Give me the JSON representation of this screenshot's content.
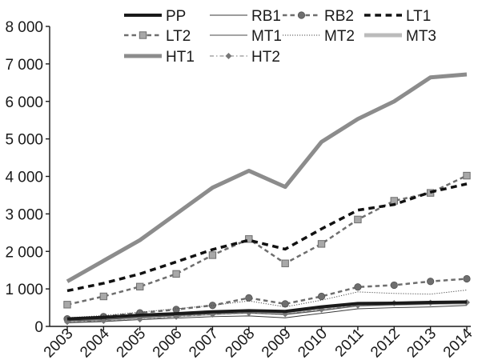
{
  "chart_data": {
    "type": "line",
    "title": "",
    "xlabel": "",
    "ylabel": "",
    "x": [
      2003,
      2004,
      2005,
      2006,
      2007,
      2008,
      2009,
      2010,
      2011,
      2012,
      2013,
      2014
    ],
    "ylim": [
      0,
      8000
    ],
    "yticks": [
      0,
      1000,
      2000,
      3000,
      4000,
      5000,
      6000,
      7000,
      8000
    ],
    "ytick_labels": [
      "0",
      "1 000",
      "2 000",
      "3 000",
      "4 000",
      "5 000",
      "6 000",
      "7 000",
      "8 000"
    ],
    "xtick_labels": [
      "2003",
      "2004",
      "2005",
      "2006",
      "2007",
      "2008",
      "2009",
      "2010",
      "2011",
      "2012",
      "2013",
      "2014"
    ],
    "grid": false,
    "legend_position": "top",
    "series": [
      {
        "name": "PP",
        "color": "#1a1a1a",
        "style": "solid",
        "width": 4,
        "marker": "none",
        "values": [
          200,
          240,
          300,
          340,
          390,
          420,
          400,
          520,
          610,
          620,
          640,
          650
        ]
      },
      {
        "name": "RB1",
        "color": "#3a3a3a",
        "style": "solid",
        "width": 1,
        "marker": "none",
        "values": [
          100,
          130,
          180,
          220,
          260,
          280,
          230,
          350,
          470,
          500,
          520,
          560
        ]
      },
      {
        "name": "RB2",
        "color": "#6e6e6e",
        "style": "dashed",
        "width": 2.5,
        "marker": "circle",
        "values": [
          200,
          260,
          360,
          450,
          560,
          760,
          600,
          800,
          1050,
          1100,
          1200,
          1270
        ]
      },
      {
        "name": "LT1",
        "color": "#111111",
        "style": "dashed",
        "width": 3.5,
        "marker": "none",
        "values": [
          950,
          1150,
          1400,
          1720,
          2050,
          2300,
          2060,
          2600,
          3100,
          3250,
          3580,
          3800
        ]
      },
      {
        "name": "LT2",
        "color": "#6e6e6e",
        "style": "dashed",
        "width": 2.5,
        "marker": "square",
        "values": [
          580,
          800,
          1060,
          1400,
          1900,
          2330,
          1680,
          2200,
          2850,
          3350,
          3560,
          4020
        ]
      },
      {
        "name": "MT1",
        "color": "#4a4a4a",
        "style": "solid",
        "width": 1,
        "marker": "none",
        "values": [
          150,
          180,
          240,
          290,
          340,
          360,
          320,
          420,
          550,
          580,
          600,
          630
        ]
      },
      {
        "name": "MT2",
        "color": "#4a4a4a",
        "style": "dotted",
        "width": 1,
        "marker": "none",
        "values": [
          230,
          290,
          380,
          470,
          560,
          680,
          520,
          700,
          920,
          880,
          860,
          970
        ]
      },
      {
        "name": "MT3",
        "color": "#bbbbbb",
        "style": "solid",
        "width": 5,
        "marker": "none",
        "values": [
          130,
          170,
          230,
          290,
          350,
          390,
          350,
          470,
          580,
          600,
          620,
          640
        ]
      },
      {
        "name": "HT1",
        "color": "#8c8c8c",
        "style": "solid",
        "width": 5,
        "marker": "none",
        "values": [
          1200,
          1750,
          2300,
          3000,
          3700,
          4150,
          3720,
          4920,
          5530,
          6000,
          6640,
          6720
        ]
      },
      {
        "name": "HT2",
        "color": "#777777",
        "style": "dashdot",
        "width": 1,
        "marker": "diamond",
        "values": [
          120,
          150,
          190,
          260,
          320,
          360,
          330,
          450,
          560,
          620,
          630,
          640
        ]
      }
    ]
  }
}
